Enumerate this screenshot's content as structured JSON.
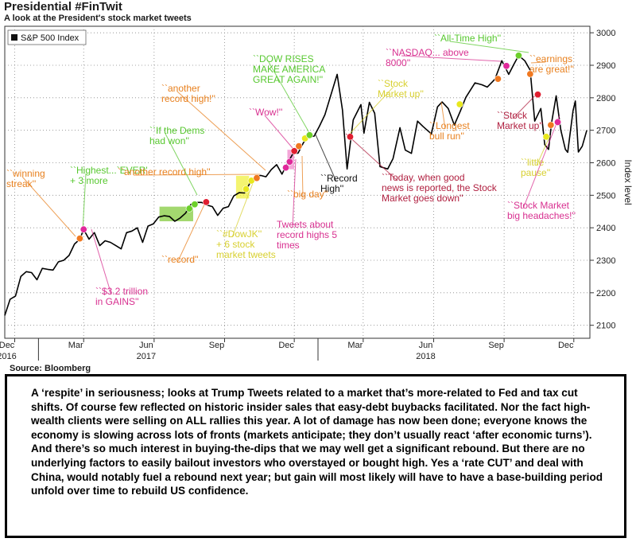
{
  "header": {
    "title": "Presidential #FinTwit",
    "subtitle": "A look at the President's stock market tweets"
  },
  "source": "Source: Bloomberg",
  "caption": "A ‘respite’ in seriousness; looks at Trump Tweets related to a market that’s more-related to Fed and tax cut shifts. Of course few reflected on historic insider sales that easy-debt buybacks facilitated. Nor the fact high-wealth clients were selling on ALL rallies this year. A lot of damage has now been done; everyone knows the economy is slowing across lots of fronts (markets anticipate; they don’t usually react ‘after economic turns’). And there’s so much interest in buying-the-dips that we may well get a significant rebound. But there are no underlying factors to easily bailout investors who overstayed or bought high. Yes a ‘rate CUT’ and deal with China, would notably fuel a rebound next year; but gain will most likely will have to have a base-building period unfold over time to rebuild US confidence.",
  "colors": {
    "line": "#000000",
    "orange": "#f07820",
    "magenta": "#e0289a",
    "green": "#6cd02a",
    "yellow": "#e8e81e",
    "red": "#e01e30",
    "annot_orange": "#e8801e",
    "annot_green": "#58c830",
    "annot_magenta": "#d83090",
    "annot_yellow": "#d8d030"
  },
  "chart_data": {
    "type": "line",
    "title": "Presidential #FinTwit",
    "legend": [
      "S&P 500 Index"
    ],
    "legend_position": "top-left",
    "ylabel": "Index level",
    "ylim": [
      2060,
      3020
    ],
    "yticks": [
      2100,
      2200,
      2300,
      2400,
      2500,
      2600,
      2700,
      2800,
      2900,
      3000
    ],
    "y_axis_side": "right",
    "xlim": [
      "2016-11-18",
      "2018-12-22"
    ],
    "xticks": [
      {
        "date": "2016-12-01",
        "label": "Dec",
        "year": "2016"
      },
      {
        "date": "2017-03-01",
        "label": "Mar",
        "year": ""
      },
      {
        "date": "2017-06-01",
        "label": "Jun",
        "year": "2017"
      },
      {
        "date": "2017-09-01",
        "label": "Sep",
        "year": ""
      },
      {
        "date": "2017-12-01",
        "label": "Dec",
        "year": ""
      },
      {
        "date": "2018-03-01",
        "label": "Mar",
        "year": ""
      },
      {
        "date": "2018-06-01",
        "label": "Jun",
        "year": "2018"
      },
      {
        "date": "2018-09-01",
        "label": "Sep",
        "year": ""
      },
      {
        "date": "2018-12-01",
        "label": "Dec",
        "year": ""
      }
    ],
    "grid": true,
    "series": [
      {
        "name": "S&P 500 Index",
        "points": [
          [
            "2016-11-18",
            2130
          ],
          [
            "2016-11-25",
            2180
          ],
          [
            "2016-12-02",
            2190
          ],
          [
            "2016-12-09",
            2250
          ],
          [
            "2016-12-16",
            2265
          ],
          [
            "2016-12-23",
            2262
          ],
          [
            "2016-12-30",
            2240
          ],
          [
            "2017-01-06",
            2275
          ],
          [
            "2017-01-13",
            2272
          ],
          [
            "2017-01-20",
            2270
          ],
          [
            "2017-01-27",
            2295
          ],
          [
            "2017-02-03",
            2300
          ],
          [
            "2017-02-10",
            2315
          ],
          [
            "2017-02-17",
            2350
          ],
          [
            "2017-02-24",
            2365
          ],
          [
            "2017-03-01",
            2395
          ],
          [
            "2017-03-08",
            2365
          ],
          [
            "2017-03-15",
            2385
          ],
          [
            "2017-03-22",
            2345
          ],
          [
            "2017-03-29",
            2360
          ],
          [
            "2017-04-05",
            2355
          ],
          [
            "2017-04-12",
            2345
          ],
          [
            "2017-04-19",
            2335
          ],
          [
            "2017-04-26",
            2385
          ],
          [
            "2017-05-03",
            2390
          ],
          [
            "2017-05-10",
            2400
          ],
          [
            "2017-05-17",
            2355
          ],
          [
            "2017-05-24",
            2405
          ],
          [
            "2017-05-31",
            2412
          ],
          [
            "2017-06-07",
            2433
          ],
          [
            "2017-06-14",
            2437
          ],
          [
            "2017-06-21",
            2435
          ],
          [
            "2017-06-28",
            2420
          ],
          [
            "2017-07-05",
            2430
          ],
          [
            "2017-07-12",
            2445
          ],
          [
            "2017-07-19",
            2472
          ],
          [
            "2017-07-26",
            2478
          ],
          [
            "2017-08-02",
            2478
          ],
          [
            "2017-08-09",
            2470
          ],
          [
            "2017-08-16",
            2465
          ],
          [
            "2017-08-23",
            2438
          ],
          [
            "2017-08-30",
            2460
          ],
          [
            "2017-09-06",
            2465
          ],
          [
            "2017-09-13",
            2498
          ],
          [
            "2017-09-20",
            2508
          ],
          [
            "2017-09-27",
            2507
          ],
          [
            "2017-10-04",
            2537
          ],
          [
            "2017-10-11",
            2555
          ],
          [
            "2017-10-18",
            2561
          ],
          [
            "2017-10-25",
            2557
          ],
          [
            "2017-11-01",
            2579
          ],
          [
            "2017-11-08",
            2594
          ],
          [
            "2017-11-15",
            2565
          ],
          [
            "2017-11-22",
            2598
          ],
          [
            "2017-11-29",
            2627
          ],
          [
            "2017-12-06",
            2630
          ],
          [
            "2017-12-13",
            2662
          ],
          [
            "2017-12-20",
            2679
          ],
          [
            "2017-12-27",
            2682
          ],
          [
            "2018-01-03",
            2713
          ],
          [
            "2018-01-10",
            2748
          ],
          [
            "2018-01-17",
            2802
          ],
          [
            "2018-01-26",
            2872
          ],
          [
            "2018-02-02",
            2762
          ],
          [
            "2018-02-08",
            2581
          ],
          [
            "2018-02-16",
            2732
          ],
          [
            "2018-02-26",
            2779
          ],
          [
            "2018-03-02",
            2691
          ],
          [
            "2018-03-09",
            2786
          ],
          [
            "2018-03-16",
            2752
          ],
          [
            "2018-03-23",
            2588
          ],
          [
            "2018-04-02",
            2581
          ],
          [
            "2018-04-09",
            2613
          ],
          [
            "2018-04-18",
            2708
          ],
          [
            "2018-04-25",
            2639
          ],
          [
            "2018-05-03",
            2629
          ],
          [
            "2018-05-11",
            2728
          ],
          [
            "2018-05-18",
            2712
          ],
          [
            "2018-05-29",
            2689
          ],
          [
            "2018-06-06",
            2772
          ],
          [
            "2018-06-12",
            2787
          ],
          [
            "2018-06-20",
            2767
          ],
          [
            "2018-06-28",
            2716
          ],
          [
            "2018-07-06",
            2760
          ],
          [
            "2018-07-13",
            2801
          ],
          [
            "2018-07-25",
            2846
          ],
          [
            "2018-08-03",
            2840
          ],
          [
            "2018-08-10",
            2833
          ],
          [
            "2018-08-20",
            2857
          ],
          [
            "2018-08-29",
            2914
          ],
          [
            "2018-09-07",
            2872
          ],
          [
            "2018-09-14",
            2904
          ],
          [
            "2018-09-20",
            2930
          ],
          [
            "2018-09-28",
            2914
          ],
          [
            "2018-10-05",
            2885
          ],
          [
            "2018-10-11",
            2728
          ],
          [
            "2018-10-19",
            2767
          ],
          [
            "2018-10-24",
            2656
          ],
          [
            "2018-10-29",
            2641
          ],
          [
            "2018-11-02",
            2723
          ],
          [
            "2018-11-08",
            2806
          ],
          [
            "2018-11-14",
            2701
          ],
          [
            "2018-11-20",
            2641
          ],
          [
            "2018-11-23",
            2632
          ],
          [
            "2018-11-30",
            2760
          ],
          [
            "2018-12-03",
            2790
          ],
          [
            "2018-12-07",
            2633
          ],
          [
            "2018-12-12",
            2651
          ],
          [
            "2018-12-18",
            2700
          ]
        ]
      }
    ],
    "markers": [
      {
        "date": "2017-02-24",
        "value": 2367,
        "color": "orange"
      },
      {
        "date": "2017-03-01",
        "value": 2395,
        "color": "magenta"
      },
      {
        "date": "2017-07-17",
        "value": 2459,
        "color": "green"
      },
      {
        "date": "2017-07-24",
        "value": 2472,
        "color": "green"
      },
      {
        "date": "2017-08-08",
        "value": 2479,
        "color": "red"
      },
      {
        "date": "2017-09-29",
        "value": 2519,
        "color": "yellow"
      },
      {
        "date": "2017-10-06",
        "value": 2545,
        "color": "yellow"
      },
      {
        "date": "2017-10-13",
        "value": 2553,
        "color": "orange"
      },
      {
        "date": "2017-11-20",
        "value": 2585,
        "color": "magenta"
      },
      {
        "date": "2017-11-25",
        "value": 2603,
        "color": "magenta"
      },
      {
        "date": "2017-12-01",
        "value": 2636,
        "color": "red"
      },
      {
        "date": "2017-12-07",
        "value": 2651,
        "color": "orange"
      },
      {
        "date": "2017-12-15",
        "value": 2675,
        "color": "yellow"
      },
      {
        "date": "2017-12-21",
        "value": 2685,
        "color": "green"
      },
      {
        "date": "2018-02-12",
        "value": 2680,
        "color": "red"
      },
      {
        "date": "2018-07-05",
        "value": 2780,
        "color": "yellow"
      },
      {
        "date": "2018-08-24",
        "value": 2858,
        "color": "orange"
      },
      {
        "date": "2018-09-04",
        "value": 2898,
        "color": "magenta"
      },
      {
        "date": "2018-09-20",
        "value": 2930,
        "color": "green"
      },
      {
        "date": "2018-10-05",
        "value": 2873,
        "color": "orange"
      },
      {
        "date": "2018-10-15",
        "value": 2810,
        "color": "red"
      },
      {
        "date": "2018-10-26",
        "value": 2680,
        "color": "yellow"
      },
      {
        "date": "2018-11-01",
        "value": 2716,
        "color": "orange"
      },
      {
        "date": "2018-11-10",
        "value": 2725,
        "color": "magenta"
      }
    ],
    "annotations": [
      {
        "lines": [
          "``winning",
          "streak''"
        ],
        "color": "annot_orange"
      },
      {
        "lines": [
          "``Highest...`EVER'",
          "+ 3 more"
        ],
        "color": "annot_green"
      },
      {
        "lines": [
          "``$3.2 trillion",
          "in GAINS''"
        ],
        "color": "annot_magenta"
      },
      {
        "lines": [
          "``record''"
        ],
        "color": "annot_orange"
      },
      {
        "lines": [
          "``#DowJK''",
          "+ 6 stock",
          "market tweets"
        ],
        "color": "annot_yellow"
      },
      {
        "lines": [
          "``another record high''"
        ],
        "color": "annot_orange"
      },
      {
        "lines": [
          "``If the Dems",
          "had won''"
        ],
        "color": "annot_green"
      },
      {
        "lines": [
          "``another",
          "record high!''"
        ],
        "color": "annot_orange"
      },
      {
        "lines": [
          "``Wow!''"
        ],
        "color": "annot_magenta"
      },
      {
        "lines": [
          "``DOW RISES",
          "MAKE AMERICA",
          "GREAT AGAIN!''"
        ],
        "color": "annot_green"
      },
      {
        "lines": [
          "Tweets about",
          "record highs 5",
          "times"
        ],
        "color": "annot_magenta"
      },
      {
        "lines": [
          "``big day''"
        ],
        "color": "annot_orange"
      },
      {
        "lines": [
          "``Record",
          "High''"
        ],
        "color": "annot_black"
      },
      {
        "lines": [
          "``Today, when good",
          "news is reported, the Stock",
          "Market goes down''"
        ],
        "color": "annot_red"
      },
      {
        "lines": [
          "``Stock",
          "Market up''"
        ],
        "color": "annot_yellow"
      },
      {
        "lines": [
          "``Longest",
          "bull run''"
        ],
        "color": "annot_orange"
      },
      {
        "lines": [
          "``NASDAQ... above",
          "8000''"
        ],
        "color": "annot_magenta"
      },
      {
        "lines": [
          "``All-Time High''"
        ],
        "color": "annot_green"
      },
      {
        "lines": [
          "``earnings",
          "are great!''"
        ],
        "color": "annot_orange"
      },
      {
        "lines": [
          "``Stock",
          "Market up''"
        ],
        "color": "annot_red"
      },
      {
        "lines": [
          "``little",
          "pause''"
        ],
        "color": "annot_yellow"
      },
      {
        "lines": [
          "``Stock Market",
          "big headaches!''"
        ],
        "color": "annot_magenta"
      }
    ]
  }
}
